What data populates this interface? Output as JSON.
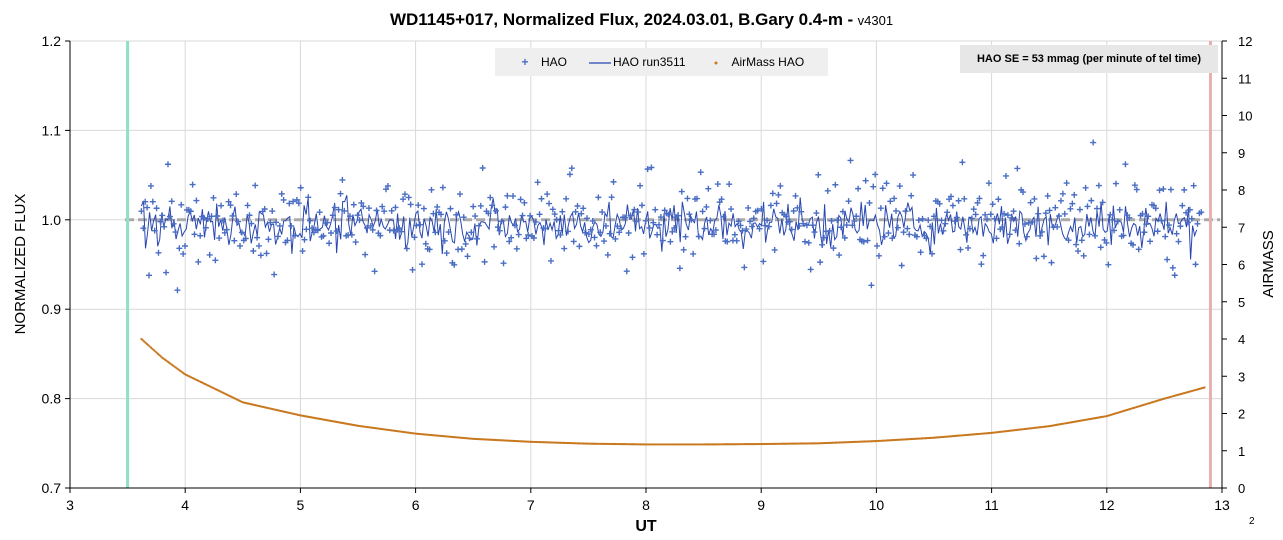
{
  "chart_data": {
    "type": "scatter",
    "title": "WD1145+017, Normalized Flux, 2024.03.01, B.Gary 0.4-m",
    "title_separator": "-",
    "version": "v4301",
    "xlabel": "UT",
    "ylabel": "NORMALIZED FLUX",
    "y2label": "AIRMASS",
    "xlim": [
      3,
      13
    ],
    "ylim": [
      0.7,
      1.2
    ],
    "y2lim": [
      0,
      12
    ],
    "x_ticks": [
      "3",
      "4",
      "5",
      "6",
      "7",
      "8",
      "9",
      "10",
      "11",
      "12",
      "13"
    ],
    "y_ticks": [
      "0.7",
      "0.8",
      "0.9",
      "1.0",
      "1.1",
      "1.2"
    ],
    "y2_ticks": [
      "0",
      "1",
      "2",
      "3",
      "4",
      "5",
      "6",
      "7",
      "8",
      "9",
      "10",
      "11",
      "12"
    ],
    "grid": true,
    "legend_position": "top-center",
    "reference_lines": {
      "flux_level": 1.0,
      "ingress_ut": 3.5,
      "egress_ut": 12.9,
      "ingress_color": "#8fe0c4",
      "egress_color": "#e8b0b0"
    },
    "series": [
      {
        "name": "HAO",
        "kind": "markers",
        "marker": "+",
        "color": "#4a6dc4",
        "ut_start": 3.62,
        "ut_end": 12.82,
        "mean": 1.0,
        "scatter": 0.05
      },
      {
        "name": "HAO run3511",
        "kind": "line",
        "color": "#2846b0",
        "ut_start": 3.62,
        "ut_end": 12.78,
        "mean": 0.995,
        "scatter": 0.025
      },
      {
        "name": "AirMass HAO",
        "kind": "dots",
        "axis": "y2",
        "color": "#c8781e",
        "x": [
          3.62,
          3.8,
          4.0,
          4.5,
          5.0,
          5.5,
          6.0,
          6.5,
          7.0,
          7.5,
          8.0,
          8.5,
          9.0,
          9.5,
          10.0,
          10.5,
          11.0,
          11.5,
          12.0,
          12.5,
          12.85
        ],
        "y": [
          4.0,
          3.5,
          3.05,
          2.3,
          1.95,
          1.67,
          1.46,
          1.32,
          1.24,
          1.19,
          1.17,
          1.17,
          1.18,
          1.2,
          1.26,
          1.35,
          1.48,
          1.66,
          1.93,
          2.4,
          2.7
        ]
      }
    ]
  },
  "se_box": "HAO SE = 53 mmag (per minute of tel time)",
  "page_number": "2"
}
